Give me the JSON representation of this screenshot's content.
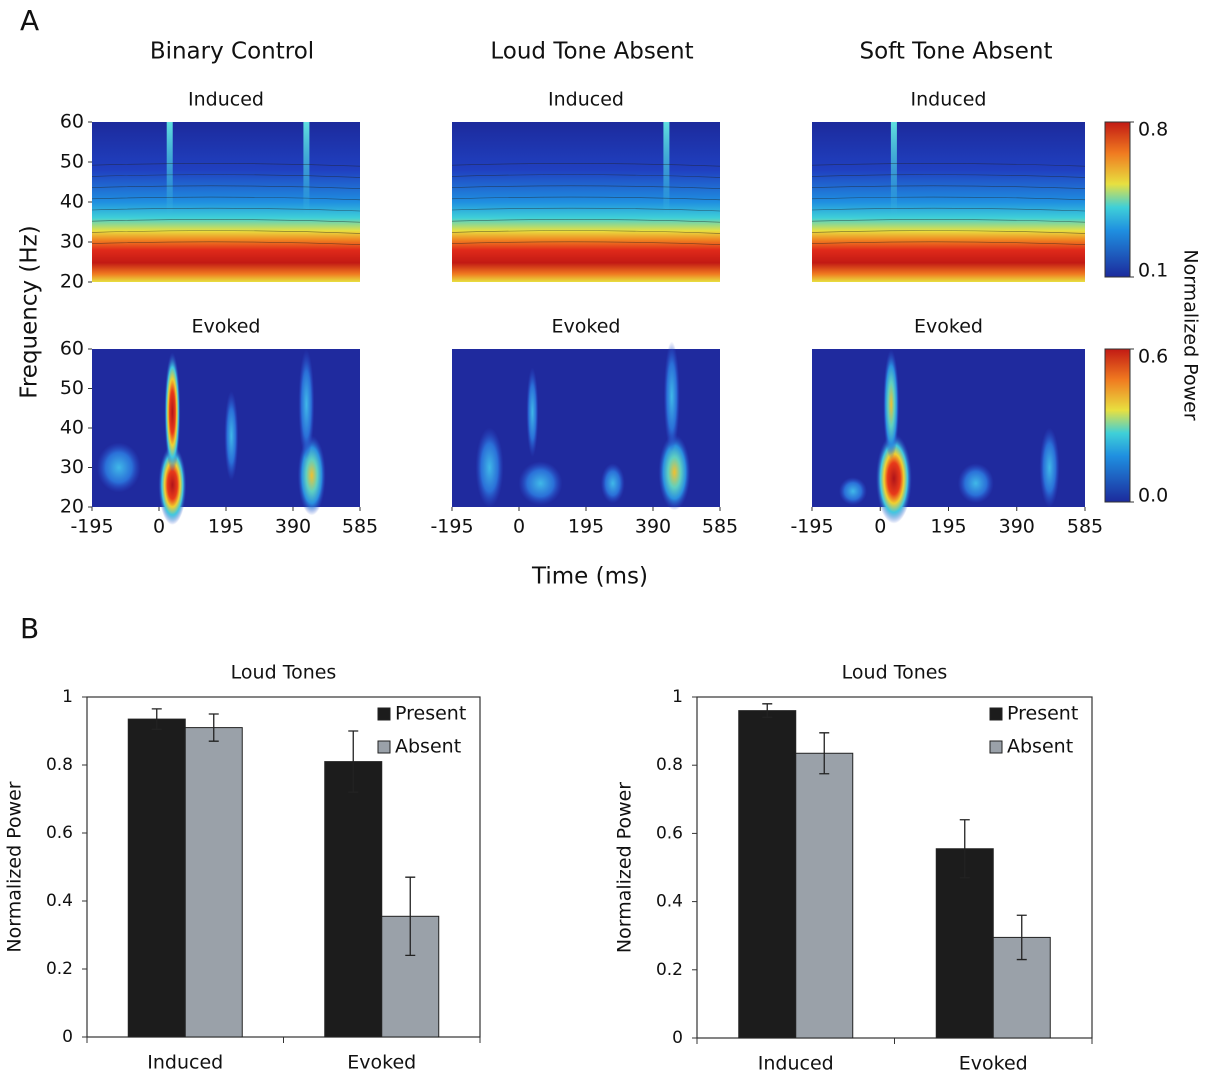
{
  "figure": {
    "panel_a": "A",
    "panel_b": "B",
    "columns": [
      "Binary Control",
      "Loud Tone Absent",
      "Soft Tone Absent"
    ],
    "y_label": "Frequency (Hz)",
    "x_label": "Time (ms)",
    "colorbar_label": "Normalized Power",
    "colorbars": [
      {
        "lim": [
          0.1,
          0.8
        ],
        "ticks": [
          0.1,
          0.8
        ]
      },
      {
        "lim": [
          0,
          0.6
        ],
        "ticks": [
          {
            "value": 0,
            "label": "0.0"
          },
          0.6
        ]
      }
    ]
  },
  "chart_data": [
    {
      "type": "heatmap",
      "title": "Induced",
      "xlim": [
        -195,
        585
      ],
      "ylim": [
        20,
        60
      ],
      "yticks": [
        20,
        30,
        40,
        50,
        60
      ]
    },
    {
      "type": "heatmap",
      "title": "Induced",
      "xlim": [
        -195,
        585
      ],
      "ylim": [
        20,
        60
      ]
    },
    {
      "type": "heatmap",
      "title": "Induced",
      "xlim": [
        -195,
        585
      ],
      "ylim": [
        20,
        60
      ]
    },
    {
      "type": "heatmap",
      "title": "Evoked",
      "xlim": [
        -195,
        585
      ],
      "ylim": [
        20,
        60
      ],
      "yticks": [
        20,
        30,
        40,
        50,
        60
      ],
      "xticks": [
        -195,
        0,
        195,
        390,
        585
      ]
    },
    {
      "type": "heatmap",
      "title": "Evoked",
      "xlim": [
        -195,
        585
      ],
      "ylim": [
        20,
        60
      ],
      "xticks": [
        -195,
        0,
        195,
        390,
        585
      ]
    },
    {
      "type": "heatmap",
      "title": "Evoked",
      "xlim": [
        -195,
        585
      ],
      "ylim": [
        20,
        60
      ],
      "xticks": [
        -195,
        0,
        195,
        390,
        585
      ]
    },
    {
      "type": "bar",
      "title": "Loud Tones",
      "y_label": "Normalized Power",
      "categories": [
        "Induced",
        "Evoked"
      ],
      "series": [
        {
          "name": "Present",
          "color": "#1c1c1c",
          "values": [
            0.935,
            0.81
          ],
          "errors": [
            0.03,
            0.09
          ]
        },
        {
          "name": "Absent",
          "color": "#9aa1a9",
          "values": [
            0.91,
            0.355
          ],
          "errors": [
            0.04,
            0.115
          ]
        }
      ],
      "ylim": [
        0,
        1
      ],
      "yticks": [
        0,
        0.2,
        0.4,
        0.6,
        0.8,
        1
      ],
      "legend": "upper right"
    },
    {
      "type": "bar",
      "title": "Loud Tones",
      "y_label": "Normalized Power",
      "categories": [
        "Induced",
        "Evoked"
      ],
      "series": [
        {
          "name": "Present",
          "color": "#1c1c1c",
          "values": [
            0.96,
            0.555
          ],
          "errors": [
            0.02,
            0.085
          ]
        },
        {
          "name": "Absent",
          "color": "#9aa1a9",
          "values": [
            0.835,
            0.295
          ],
          "errors": [
            0.06,
            0.065
          ]
        }
      ],
      "ylim": [
        0,
        1
      ],
      "yticks": [
        0,
        0.2,
        0.4,
        0.6,
        0.8,
        1
      ],
      "legend": "upper right"
    }
  ]
}
